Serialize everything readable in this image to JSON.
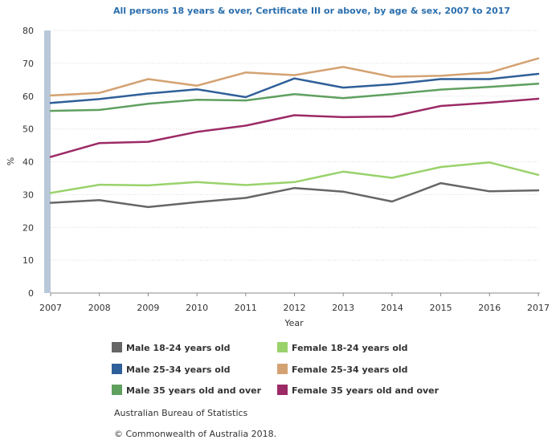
{
  "chart_data": {
    "type": "line",
    "title": "All persons 18 years & over, Certificate III or above, by age & sex, 2007 to 2017",
    "xlabel": "Year",
    "ylabel": "%",
    "ylim": [
      0,
      80
    ],
    "yticks": [
      0,
      10,
      20,
      30,
      40,
      50,
      60,
      70,
      80
    ],
    "x": [
      "2007",
      "2008",
      "2009",
      "2010",
      "2011",
      "2012",
      "2013",
      "2014",
      "2015",
      "2016",
      "2017"
    ],
    "grid": true,
    "legend_position": "bottom",
    "series": [
      {
        "name": "Male 18-24 years old",
        "color": "#666666",
        "values": [
          27.5,
          28.3,
          26.2,
          27.7,
          29.0,
          32.0,
          30.9,
          27.9,
          33.5,
          31.0,
          31.3
        ]
      },
      {
        "name": "Female 18-24 years old",
        "color": "#99d26b",
        "values": [
          30.5,
          33.0,
          32.8,
          33.8,
          32.9,
          33.8,
          37.0,
          35.1,
          38.4,
          39.8,
          36.0
        ]
      },
      {
        "name": "Male 25-34 years old",
        "color": "#2f5f98",
        "values": [
          57.9,
          59.1,
          60.8,
          62.1,
          59.7,
          65.4,
          62.6,
          63.6,
          65.2,
          65.2,
          66.8
        ]
      },
      {
        "name": "Female 25-34 years old",
        "color": "#d4a272",
        "values": [
          60.2,
          61.0,
          65.2,
          63.2,
          67.2,
          66.4,
          68.9,
          65.9,
          66.2,
          67.2,
          71.5
        ]
      },
      {
        "name": "Male 35 years old and over",
        "color": "#5fa05f",
        "values": [
          55.5,
          55.8,
          57.7,
          58.9,
          58.7,
          60.6,
          59.4,
          60.6,
          62.0,
          62.8,
          63.8
        ]
      },
      {
        "name": "Female 35 years old and over",
        "color": "#9c2a66",
        "values": [
          41.5,
          45.7,
          46.1,
          49.1,
          51.0,
          54.2,
          53.6,
          53.8,
          57.0,
          58.0,
          59.2
        ]
      }
    ]
  },
  "footer": {
    "source": "Australian Bureau of Statistics",
    "copyright": "© Commonwealth of Australia 2018."
  }
}
